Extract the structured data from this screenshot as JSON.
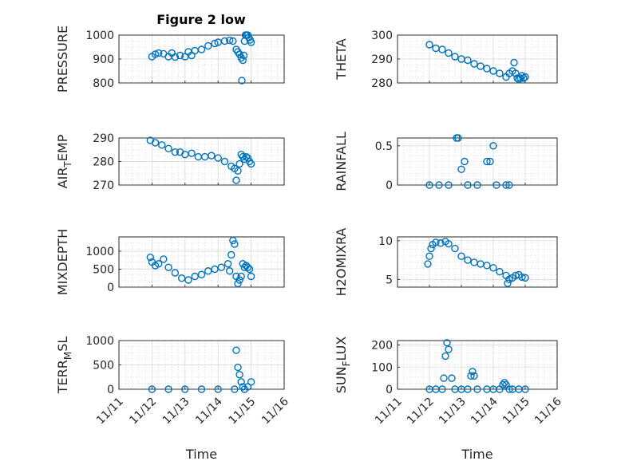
{
  "figure": {
    "title": "Figure 2 low",
    "marker_color": "#0072bd"
  },
  "chart_data": [
    {
      "type": "scatter",
      "ylabel": "PRESSURE",
      "xlabel": "",
      "xlim": [
        "11/11",
        "11/16"
      ],
      "ylim": [
        800,
        1000
      ],
      "yticks": [
        800,
        900,
        1000
      ],
      "yticklabels": [
        "800",
        "900",
        "1000"
      ],
      "grid": true,
      "x": [
        1.0,
        1.1,
        1.2,
        1.35,
        1.5,
        1.6,
        1.7,
        1.85,
        2.0,
        2.1,
        2.2,
        2.3,
        2.5,
        2.7,
        2.9,
        3.0,
        3.2,
        3.35,
        3.45,
        3.55,
        3.6,
        3.65,
        3.7,
        3.72,
        3.75,
        3.78,
        3.8,
        3.83,
        3.86,
        3.9,
        3.93,
        3.97,
        4.0
      ],
      "y": [
        910,
        920,
        925,
        922,
        910,
        925,
        908,
        915,
        910,
        930,
        915,
        935,
        940,
        955,
        965,
        970,
        975,
        978,
        975,
        940,
        930,
        920,
        905,
        810,
        895,
        915,
        975,
        1000,
        1000,
        1000,
        990,
        980,
        970
      ]
    },
    {
      "type": "scatter",
      "ylabel": "THETA",
      "xlabel": "",
      "xlim": [
        "11/11",
        "11/16"
      ],
      "ylim": [
        280,
        300
      ],
      "yticks": [
        280,
        290,
        300
      ],
      "yticklabels": [
        "280",
        "290",
        "300"
      ],
      "grid": true,
      "x": [
        1.0,
        1.2,
        1.4,
        1.6,
        1.8,
        2.0,
        2.2,
        2.4,
        2.6,
        2.8,
        3.0,
        3.2,
        3.4,
        3.5,
        3.6,
        3.65,
        3.7,
        3.75,
        3.8,
        3.85,
        3.9,
        3.95,
        4.0
      ],
      "y": [
        296,
        294.5,
        294,
        292.5,
        291,
        290,
        289.5,
        288,
        287,
        286,
        285,
        284,
        282.5,
        284,
        285,
        288.5,
        284,
        282,
        281.5,
        282,
        283,
        282,
        282.5
      ]
    },
    {
      "type": "scatter",
      "ylabel": "AIR_TEMP",
      "xlabel": "",
      "xlim": [
        "11/11",
        "11/16"
      ],
      "ylim": [
        270,
        290
      ],
      "yticks": [
        270,
        280,
        290
      ],
      "yticklabels": [
        "270",
        "280",
        "290"
      ],
      "grid": true,
      "x": [
        0.95,
        1.1,
        1.3,
        1.5,
        1.7,
        1.85,
        2.0,
        2.2,
        2.4,
        2.6,
        2.8,
        3.0,
        3.2,
        3.4,
        3.5,
        3.55,
        3.6,
        3.65,
        3.7,
        3.75,
        3.8,
        3.85,
        3.9,
        3.95,
        4.0
      ],
      "y": [
        289,
        288,
        287,
        285.5,
        284,
        284,
        283,
        283.5,
        282,
        282,
        282.5,
        281.5,
        280,
        278,
        277,
        272,
        276,
        279,
        283,
        282,
        281,
        282,
        281.5,
        280,
        279
      ]
    },
    {
      "type": "scatter",
      "ylabel": "RAINFALL",
      "xlabel": "",
      "xlim": [
        "11/11",
        "11/16"
      ],
      "ylim": [
        0,
        0.6
      ],
      "yticks": [
        0,
        0.5
      ],
      "yticklabels": [
        "0",
        "0.5"
      ],
      "grid": true,
      "x": [
        1.0,
        1.3,
        1.6,
        1.85,
        1.9,
        2.0,
        2.1,
        2.2,
        2.5,
        2.8,
        2.9,
        3.0,
        3.1,
        3.4,
        3.5
      ],
      "y": [
        0,
        0,
        0,
        0.6,
        0.6,
        0.2,
        0.3,
        0,
        0,
        0.3,
        0.3,
        0.5,
        0,
        0,
        0
      ]
    },
    {
      "type": "scatter",
      "ylabel": "MIXDEPTH",
      "xlabel": "",
      "xlim": [
        "11/11",
        "11/16"
      ],
      "ylim": [
        0,
        1400
      ],
      "yticks": [
        0,
        500,
        1000
      ],
      "yticklabels": [
        "0",
        "500",
        "1000"
      ],
      "grid": true,
      "x": [
        0.95,
        1.0,
        1.1,
        1.2,
        1.35,
        1.5,
        1.7,
        1.9,
        2.1,
        2.3,
        2.5,
        2.7,
        2.9,
        3.1,
        3.3,
        3.35,
        3.4,
        3.45,
        3.5,
        3.55,
        3.6,
        3.65,
        3.7,
        3.75,
        3.8,
        3.85,
        3.9,
        3.95,
        4.0
      ],
      "y": [
        830,
        700,
        600,
        650,
        780,
        550,
        400,
        250,
        200,
        300,
        350,
        450,
        500,
        550,
        650,
        450,
        900,
        1300,
        1200,
        300,
        100,
        200,
        300,
        650,
        550,
        600,
        550,
        500,
        300
      ]
    },
    {
      "type": "scatter",
      "ylabel": "H2OMIXRA",
      "xlabel": "",
      "xlim": [
        "11/11",
        "11/16"
      ],
      "ylim": [
        4,
        10.5
      ],
      "yticks": [
        5,
        10
      ],
      "yticklabels": [
        "5",
        "10"
      ],
      "grid": true,
      "x": [
        0.95,
        1.0,
        1.05,
        1.1,
        1.2,
        1.35,
        1.5,
        1.6,
        1.8,
        2.0,
        2.2,
        2.4,
        2.6,
        2.8,
        3.0,
        3.2,
        3.4,
        3.45,
        3.5,
        3.6,
        3.7,
        3.8,
        3.9,
        4.0
      ],
      "y": [
        7,
        8,
        9,
        9.5,
        9.8,
        9.7,
        9.9,
        9.6,
        9,
        8,
        7.5,
        7.2,
        7,
        6.8,
        6.5,
        6,
        5.5,
        4.5,
        5,
        5.2,
        5.5,
        5.6,
        5.3,
        5.2
      ]
    },
    {
      "type": "scatter",
      "ylabel": "TERR_MSL",
      "xlabel": "Time",
      "xlim": [
        "11/11",
        "11/16"
      ],
      "ylim": [
        0,
        1000
      ],
      "yticks": [
        0,
        500,
        1000
      ],
      "yticklabels": [
        "0",
        "500",
        "1000"
      ],
      "xticklabels": [
        "11/11",
        "11/12",
        "11/13",
        "11/14",
        "11/15",
        "11/16"
      ],
      "grid": true,
      "x": [
        1.0,
        1.5,
        2.0,
        2.5,
        3.0,
        3.5,
        3.55,
        3.6,
        3.65,
        3.7,
        3.75,
        3.8,
        3.9,
        4.0
      ],
      "y": [
        0,
        0,
        0,
        0,
        0,
        0,
        800,
        450,
        300,
        150,
        50,
        0,
        50,
        150
      ]
    },
    {
      "type": "scatter",
      "ylabel": "SUN_FLUX",
      "xlabel": "Time",
      "xlim": [
        "11/11",
        "11/16"
      ],
      "ylim": [
        0,
        220
      ],
      "yticks": [
        0,
        100,
        200
      ],
      "yticklabels": [
        "0",
        "100",
        "200"
      ],
      "xticklabels": [
        "11/11",
        "11/12",
        "11/13",
        "11/14",
        "11/15",
        "11/16"
      ],
      "grid": true,
      "x": [
        1.0,
        1.2,
        1.4,
        1.45,
        1.5,
        1.55,
        1.6,
        1.7,
        1.8,
        2.0,
        2.2,
        2.3,
        2.35,
        2.4,
        2.5,
        2.8,
        3.0,
        3.2,
        3.3,
        3.35,
        3.4,
        3.5,
        3.6,
        3.8,
        4.0
      ],
      "y": [
        0,
        0,
        0,
        50,
        150,
        210,
        180,
        50,
        0,
        0,
        0,
        60,
        80,
        60,
        0,
        0,
        0,
        0,
        20,
        30,
        20,
        0,
        0,
        0,
        0
      ]
    }
  ]
}
